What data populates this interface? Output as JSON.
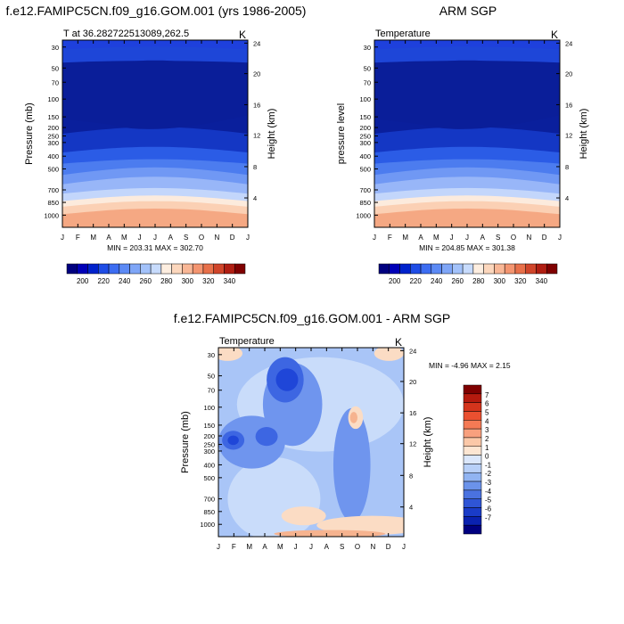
{
  "figure": {
    "top_left_title": "f.e12.FAMIPC5CN.f09_g16.GOM.001 (yrs 1986-2005)",
    "top_right_title": "ARM SGP",
    "bottom_title": "f.e12.FAMIPC5CN.f09_g16.GOM.001 - ARM SGP"
  },
  "chart_data": [
    {
      "type": "heatmap",
      "title": "f.e12.FAMIPC5CN.f09_g16.GOM.001 (yrs 1986-2005)",
      "subtitle_left": "T at 36.282722513089,262.5",
      "subtitle_right": "K",
      "ylabel": "Pressure (mb)",
      "ylabel_right": "Height (km)",
      "x_ticks": [
        "J",
        "F",
        "M",
        "A",
        "M",
        "J",
        "J",
        "A",
        "S",
        "O",
        "N",
        "D",
        "J"
      ],
      "y_ticks": [
        "30",
        "50",
        "70",
        "100",
        "150",
        "200",
        "250",
        "300",
        "400",
        "500",
        "700",
        "850",
        "1000"
      ],
      "y_ticks_right": [
        "24",
        "20",
        "16",
        "12",
        "8",
        "4"
      ],
      "stats_text": "MIN = 203.31 MAX = 302.70",
      "colorbar": {
        "colors": [
          "#00007f",
          "#0000b8",
          "#0022cc",
          "#1f4de6",
          "#3d6df2",
          "#5c8af5",
          "#7fa6f7",
          "#a3c2fa",
          "#c7dbfc",
          "#fdeee0",
          "#fcd7bd",
          "#f9b796",
          "#f49570",
          "#e8704a",
          "#d0452a",
          "#b01e12",
          "#7f0000"
        ],
        "labels": [
          "200",
          "220",
          "240",
          "260",
          "280",
          "300",
          "320",
          "340"
        ],
        "orientation": "horizontal"
      }
    },
    {
      "type": "heatmap",
      "title": "ARM SGP",
      "subtitle_left": "Temperature",
      "subtitle_right": "K",
      "ylabel": "pressure level",
      "ylabel_right": "Height (km)",
      "x_ticks": [
        "J",
        "F",
        "M",
        "A",
        "M",
        "J",
        "J",
        "A",
        "S",
        "O",
        "N",
        "D",
        "J"
      ],
      "y_ticks": [
        "30",
        "50",
        "70",
        "100",
        "150",
        "200",
        "250",
        "300",
        "400",
        "500",
        "700",
        "850",
        "1000"
      ],
      "y_ticks_right": [
        "24",
        "20",
        "16",
        "12",
        "8",
        "4"
      ],
      "stats_text": "MIN = 204.85 MAX = 301.38",
      "colorbar": {
        "colors": [
          "#00007f",
          "#0000b8",
          "#0022cc",
          "#1f4de6",
          "#3d6df2",
          "#5c8af5",
          "#7fa6f7",
          "#a3c2fa",
          "#c7dbfc",
          "#fdeee0",
          "#fcd7bd",
          "#f9b796",
          "#f49570",
          "#e8704a",
          "#d0452a",
          "#b01e12",
          "#7f0000"
        ],
        "labels": [
          "200",
          "220",
          "240",
          "260",
          "280",
          "300",
          "320",
          "340"
        ],
        "orientation": "horizontal"
      }
    },
    {
      "type": "heatmap",
      "title": "f.e12.FAMIPC5CN.f09_g16.GOM.001 - ARM SGP",
      "subtitle_left": "Temperature",
      "subtitle_right": "K",
      "ylabel": "Pressure (mb)",
      "ylabel_right": "Height (km)",
      "x_ticks": [
        "J",
        "F",
        "M",
        "A",
        "M",
        "J",
        "J",
        "A",
        "S",
        "O",
        "N",
        "D",
        "J"
      ],
      "y_ticks": [
        "30",
        "50",
        "70",
        "100",
        "150",
        "200",
        "250",
        "300",
        "400",
        "500",
        "700",
        "850",
        "1000"
      ],
      "y_ticks_right": [
        "24",
        "20",
        "16",
        "12",
        "8",
        "4"
      ],
      "stats_text": "MIN =  -4.96 MAX =   2.15",
      "colorbar": {
        "colors": [
          "#7f0000",
          "#b51a0e",
          "#d4341c",
          "#ea5030",
          "#f47a55",
          "#f8a07e",
          "#fbc8a8",
          "#fde6d2",
          "#dbe7fb",
          "#b8d0f8",
          "#91b4f2",
          "#6b93ea",
          "#4a72e0",
          "#2f55d6",
          "#1a3cc8",
          "#0a22b0",
          "#000080"
        ],
        "labels": [
          "7",
          "6",
          "5",
          "4",
          "3",
          "2",
          "1",
          "0",
          "-1",
          "-2",
          "-3",
          "-4",
          "-5",
          "-6",
          "-7"
        ],
        "orientation": "vertical"
      }
    }
  ]
}
